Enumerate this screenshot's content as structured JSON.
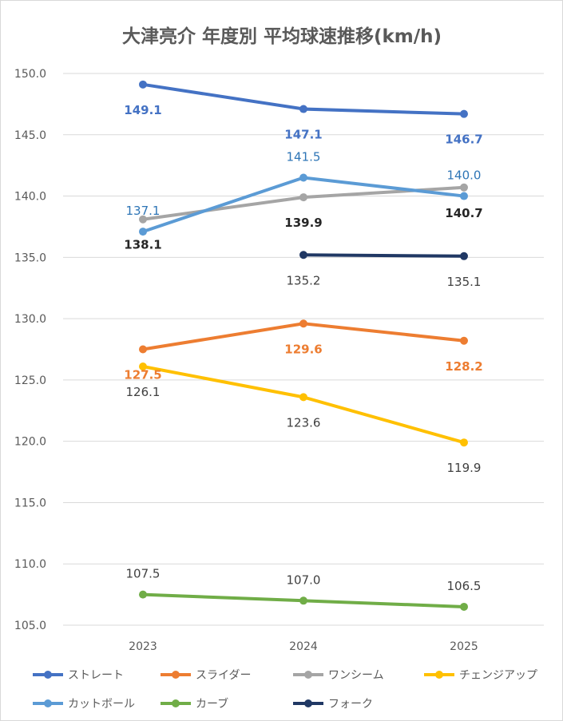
{
  "chart_data": {
    "type": "line",
    "title": "大津亮介 年度別 平均球速推移(km/h)",
    "xlabel": "",
    "ylabel": "",
    "categories": [
      "2023",
      "2024",
      "2025"
    ],
    "ylim": [
      105.0,
      150.0
    ],
    "yticks": [
      "150.0",
      "145.0",
      "140.0",
      "135.0",
      "130.0",
      "125.0",
      "120.0",
      "115.0",
      "110.0",
      "105.0"
    ],
    "grid": true,
    "legend": "bottom",
    "series": [
      {
        "name": "ストレート",
        "color": "#4472C4",
        "values": [
          149.1,
          147.1,
          146.7
        ],
        "labels": [
          "149.1",
          "147.1",
          "146.7"
        ],
        "label_color": "#4472C4",
        "label_bold": true,
        "label_pos": [
          "below",
          "below",
          "below"
        ]
      },
      {
        "name": "スライダー",
        "color": "#ED7D31",
        "values": [
          127.5,
          129.6,
          128.2
        ],
        "labels": [
          "127.5",
          "129.6",
          "128.2"
        ],
        "label_color": "#ED7D31",
        "label_bold": true,
        "label_pos": [
          "below",
          "below",
          "below"
        ]
      },
      {
        "name": "ワンシーム",
        "color": "#A5A5A5",
        "values": [
          138.1,
          139.9,
          140.7
        ],
        "labels": [
          "138.1",
          "139.9",
          "140.7"
        ],
        "label_color": "#262626",
        "label_bold": true,
        "label_pos": [
          "below",
          "below",
          "below"
        ]
      },
      {
        "name": "チェンジアップ",
        "color": "#FFC000",
        "values": [
          126.1,
          123.6,
          119.9
        ],
        "labels": [
          "126.1",
          "123.6",
          "119.9"
        ],
        "label_color": "#404040",
        "label_bold": false,
        "label_pos": [
          "below",
          "below",
          "below"
        ]
      },
      {
        "name": "カットボール",
        "color": "#5B9BD5",
        "values": [
          137.1,
          141.5,
          140.0
        ],
        "labels": [
          "137.1",
          "141.5",
          "140.0"
        ],
        "label_color": "#2E75B6",
        "label_bold": false,
        "label_pos": [
          "above",
          "above",
          "above"
        ]
      },
      {
        "name": "カーブ",
        "color": "#70AD47",
        "values": [
          107.5,
          107.0,
          106.5
        ],
        "labels": [
          "107.5",
          "107.0",
          "106.5"
        ],
        "label_color": "#404040",
        "label_bold": false,
        "label_pos": [
          "above",
          "above",
          "above"
        ]
      },
      {
        "name": "フォーク",
        "color": "#203864",
        "values": [
          null,
          135.2,
          135.1
        ],
        "labels": [
          null,
          "135.2",
          "135.1"
        ],
        "label_color": "#404040",
        "label_bold": false,
        "label_pos": [
          "below",
          "below",
          "below"
        ]
      }
    ]
  }
}
